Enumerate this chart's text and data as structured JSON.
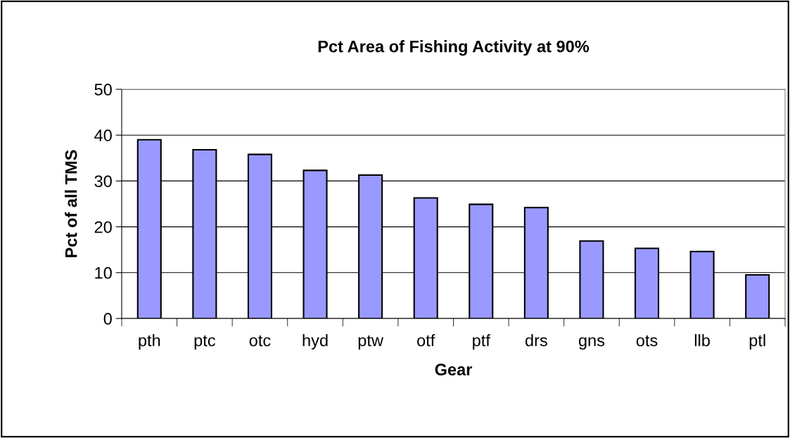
{
  "chart_data": {
    "type": "bar",
    "title": "Pct Area of Fishing Activity at 90%",
    "xlabel": "Gear",
    "ylabel": "Pct of all TMS",
    "categories": [
      "pth",
      "ptc",
      "otc",
      "hyd",
      "ptw",
      "otf",
      "ptf",
      "drs",
      "gns",
      "ots",
      "llb",
      "ptl"
    ],
    "values": [
      39.0,
      36.8,
      35.8,
      32.3,
      31.3,
      26.3,
      24.9,
      24.2,
      16.9,
      15.3,
      14.6,
      9.5
    ],
    "color": "#9999ff",
    "ylim": [
      0,
      50
    ],
    "yticks": [
      0,
      10,
      20,
      30,
      40,
      50
    ],
    "grid": "y",
    "legend": false
  }
}
